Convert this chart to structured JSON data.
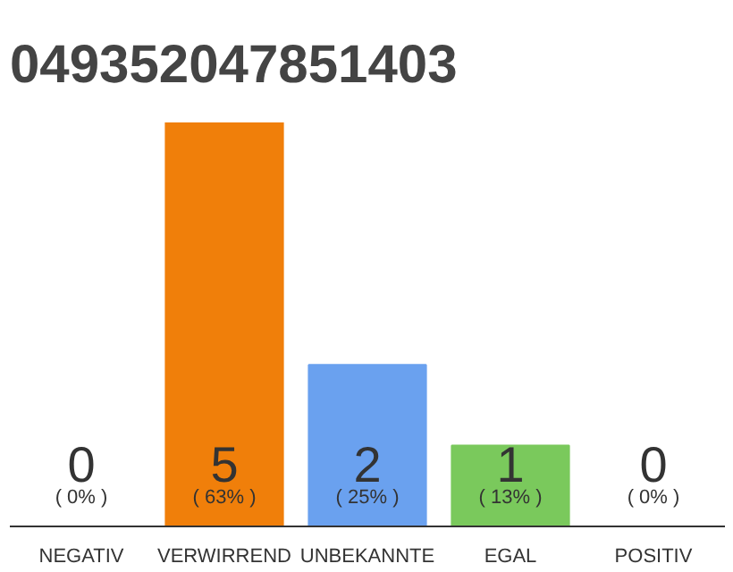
{
  "chart_data": {
    "type": "bar",
    "title": "049352047851403",
    "categories": [
      "NEGATIV",
      "VERWIRREND",
      "UNBEKANNTE",
      "EGAL",
      "POSITIV"
    ],
    "values": [
      0,
      5,
      2,
      1,
      0
    ],
    "colors": [
      "#aaaaaa",
      "#f07f0a",
      "#6aa1ef",
      "#7ac95c",
      "#aaaaaa"
    ],
    "data_labels": true,
    "annotations": [
      "( 0% )",
      "( 63% )",
      "( 25% )",
      "( 13% )",
      "( 0% )"
    ]
  }
}
